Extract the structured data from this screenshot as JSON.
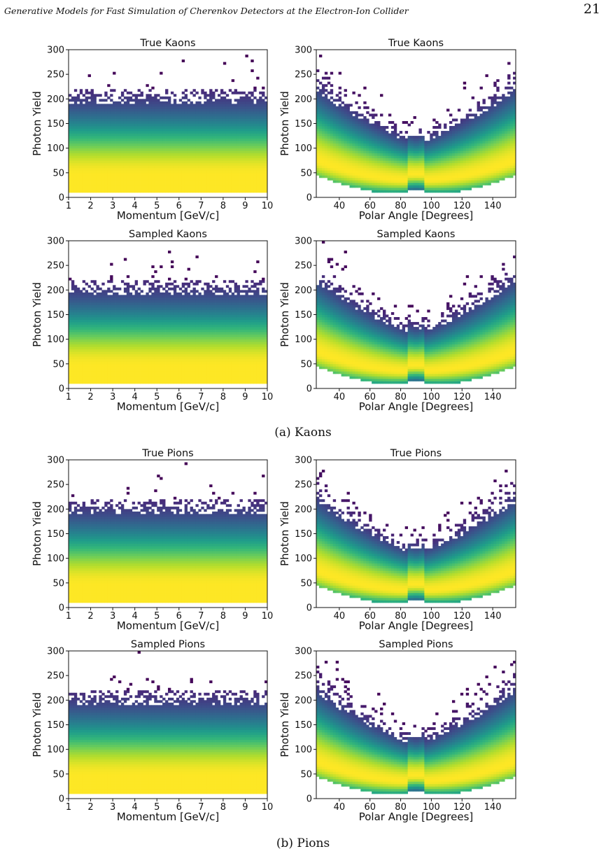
{
  "page": {
    "running_header": "Generative Models for Fast Simulation of Cherenkov Detectors at the Electron-Ion Collider",
    "page_number": "21"
  },
  "captions": [
    "(a) Kaons",
    "(b) Pions"
  ],
  "chart_data": [
    {
      "type": "heatmap",
      "title": "True Kaons",
      "xlabel": "Momentum [GeV/c]",
      "ylabel": "Photon Yield",
      "xlim": [
        1,
        10
      ],
      "ylim": [
        0,
        300
      ],
      "xticks": [
        1,
        2,
        3,
        4,
        5,
        6,
        7,
        8,
        9,
        10
      ],
      "yticks": [
        0,
        50,
        100,
        150,
        200,
        250,
        300
      ],
      "colormap": "viridis",
      "band_center": 45,
      "cutoff_low": 12
    },
    {
      "type": "heatmap",
      "title": "True Kaons",
      "xlabel": "Polar Angle [Degrees]",
      "ylabel": "Photon Yield",
      "xlim": [
        25,
        155
      ],
      "ylim": [
        0,
        300
      ],
      "xticks": [
        40,
        60,
        80,
        100,
        120,
        140
      ],
      "yticks": [
        0,
        50,
        100,
        150,
        200,
        250,
        300
      ],
      "colormap": "viridis",
      "band_min_at_degrees": 90,
      "band_min_yield": 35
    },
    {
      "type": "heatmap",
      "title": "Sampled Kaons",
      "xlabel": "Momentum [GeV/c]",
      "ylabel": "Photon Yield",
      "xlim": [
        1,
        10
      ],
      "ylim": [
        0,
        300
      ],
      "xticks": [
        1,
        2,
        3,
        4,
        5,
        6,
        7,
        8,
        9,
        10
      ],
      "yticks": [
        0,
        50,
        100,
        150,
        200,
        250,
        300
      ],
      "colormap": "viridis",
      "band_center": 45,
      "cutoff_low": 12
    },
    {
      "type": "heatmap",
      "title": "Sampled Kaons",
      "xlabel": "Polar Angle [Degrees]",
      "ylabel": "Photon Yield",
      "xlim": [
        25,
        155
      ],
      "ylim": [
        0,
        300
      ],
      "xticks": [
        40,
        60,
        80,
        100,
        120,
        140
      ],
      "yticks": [
        0,
        50,
        100,
        150,
        200,
        250,
        300
      ],
      "colormap": "viridis",
      "band_min_at_degrees": 90,
      "band_min_yield": 35
    },
    {
      "type": "heatmap",
      "title": "True Pions",
      "xlabel": "Momentum [GeV/c]",
      "ylabel": "Photon Yield",
      "xlim": [
        1,
        10
      ],
      "ylim": [
        0,
        300
      ],
      "xticks": [
        1,
        2,
        3,
        4,
        5,
        6,
        7,
        8,
        9,
        10
      ],
      "yticks": [
        0,
        50,
        100,
        150,
        200,
        250,
        300
      ],
      "colormap": "viridis",
      "band_center": 45,
      "cutoff_low": 12
    },
    {
      "type": "heatmap",
      "title": "True Pions",
      "xlabel": "Polar Angle [Degrees]",
      "ylabel": "Photon Yield",
      "xlim": [
        25,
        155
      ],
      "ylim": [
        0,
        300
      ],
      "xticks": [
        40,
        60,
        80,
        100,
        120,
        140
      ],
      "yticks": [
        0,
        50,
        100,
        150,
        200,
        250,
        300
      ],
      "colormap": "viridis",
      "band_min_at_degrees": 90,
      "band_min_yield": 35
    },
    {
      "type": "heatmap",
      "title": "Sampled Pions",
      "xlabel": "Momentum [GeV/c]",
      "ylabel": "Photon Yield",
      "xlim": [
        1,
        10
      ],
      "ylim": [
        0,
        300
      ],
      "xticks": [
        1,
        2,
        3,
        4,
        5,
        6,
        7,
        8,
        9,
        10
      ],
      "yticks": [
        0,
        50,
        100,
        150,
        200,
        250,
        300
      ],
      "colormap": "viridis",
      "band_center": 45,
      "cutoff_low": 12
    },
    {
      "type": "heatmap",
      "title": "Sampled Pions",
      "xlabel": "Polar Angle [Degrees]",
      "ylabel": "Photon Yield",
      "xlim": [
        25,
        155
      ],
      "ylim": [
        0,
        300
      ],
      "xticks": [
        40,
        60,
        80,
        100,
        120,
        140
      ],
      "yticks": [
        0,
        50,
        100,
        150,
        200,
        250,
        300
      ],
      "colormap": "viridis",
      "band_min_at_degrees": 90,
      "band_min_yield": 35
    }
  ]
}
